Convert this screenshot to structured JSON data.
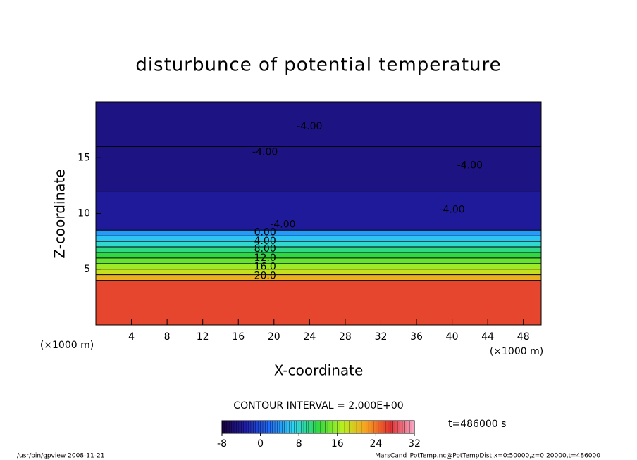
{
  "chart_data": {
    "type": "heatmap",
    "title": "disturbunce of potential temperature",
    "x_label": "X-coordinate",
    "y_label": "Z-coordinate",
    "x_unit": "(×1000 m)",
    "y_unit": "(×1000 m)",
    "xlim": [
      0,
      50
    ],
    "xticks": [
      4,
      8,
      12,
      16,
      20,
      24,
      28,
      32,
      36,
      40,
      44,
      48
    ],
    "ylim": [
      0,
      20
    ],
    "yticks": [
      5,
      10,
      15
    ],
    "y_bins": [
      0,
      4,
      4.5,
      5,
      5.5,
      6,
      6.5,
      7,
      7.5,
      8,
      8.5,
      12,
      16,
      20
    ],
    "values": [
      26,
      21,
      18,
      16,
      14,
      12,
      10,
      8,
      6,
      4,
      -4,
      -5,
      -5
    ],
    "contour_labels": [
      "0.00",
      "4.00",
      "8.00",
      "12.0",
      "16.0",
      "20.0",
      "-4.00",
      "-4.00",
      "-4.00",
      "-4.00",
      "-4.00"
    ],
    "contour_interval": "CONTOUR INTERVAL = 2.000E+00",
    "clim": [
      -8,
      32
    ],
    "cticks": [
      -8,
      0,
      8,
      16,
      24,
      32
    ],
    "colors": [
      "#1a0040",
      "#2020b0",
      "#2070ff",
      "#30d8f0",
      "#30d840",
      "#b8f020",
      "#f8a020",
      "#e03030",
      "#f8a8c8"
    ],
    "time": "t=486000 s",
    "footer_left": "/usr/bin/gpview   2008-11-21",
    "footer_right": "MarsCand_PotTemp.nc@PotTempDist,x=0:50000,z=0:20000,t=486000"
  }
}
